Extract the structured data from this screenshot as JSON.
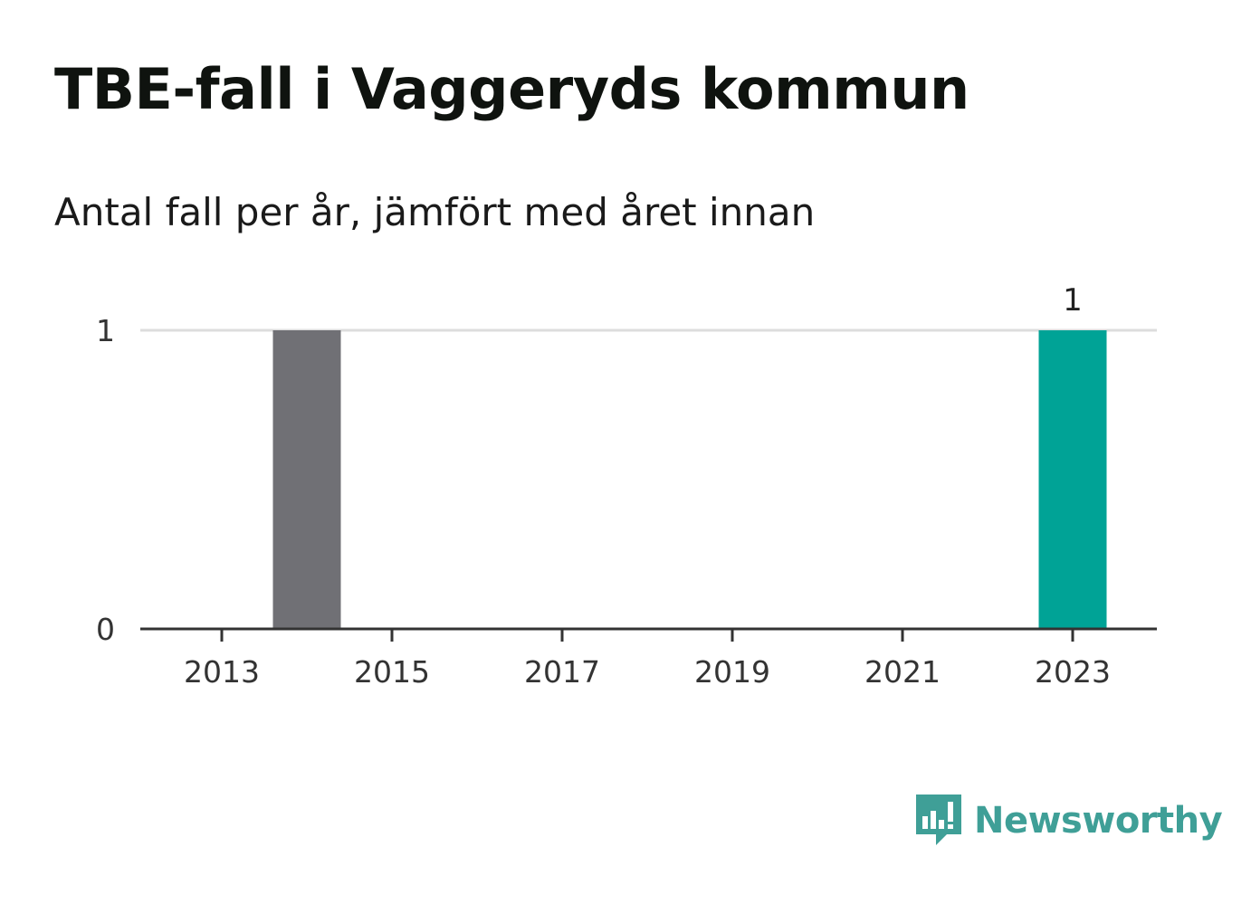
{
  "header": {
    "title": "TBE-fall i Vaggeryds kommun",
    "subtitle": "Antal fall per år, jämfört med året innan"
  },
  "chart_data": {
    "type": "bar",
    "title": "TBE-fall i Vaggeryds kommun",
    "subtitle": "Antal fall per år, jämfört med året innan",
    "xlabel": "",
    "ylabel": "",
    "categories": [
      "2013",
      "2014",
      "2015",
      "2016",
      "2017",
      "2018",
      "2019",
      "2020",
      "2021",
      "2022",
      "2023"
    ],
    "values": [
      0,
      1,
      0,
      0,
      0,
      0,
      0,
      0,
      0,
      0,
      1
    ],
    "x_tick_labels": [
      "2013",
      "2015",
      "2017",
      "2019",
      "2021",
      "2023"
    ],
    "y_ticks": [
      0,
      1
    ],
    "ylim": [
      0,
      1
    ],
    "grid": true,
    "legend": "none",
    "highlight": {
      "category": "2023",
      "label": "1"
    },
    "colors": {
      "default": "#707075",
      "highlight": "#00a396",
      "grid": "#dddddd",
      "axis": "#333333"
    }
  },
  "brand": {
    "name": "Newsworthy",
    "icon": "bar-chart-speech-bubble-icon",
    "color": "#3f9f97"
  }
}
